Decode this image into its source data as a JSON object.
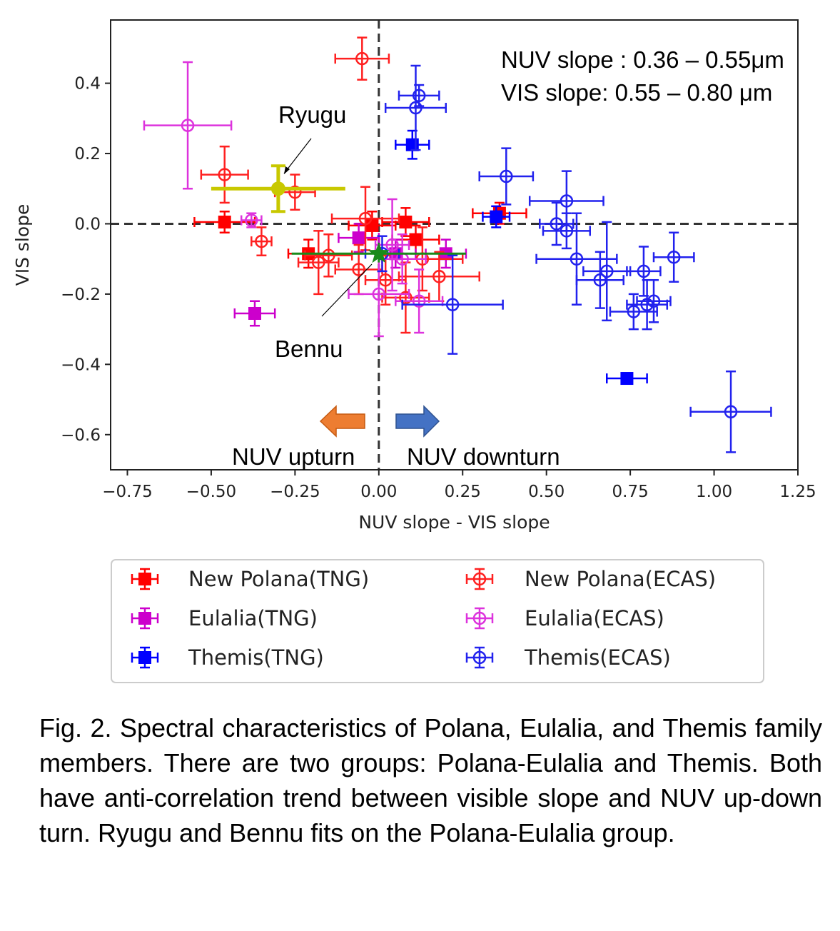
{
  "chart_data": {
    "type": "scatter",
    "xlabel": "NUV slope - VIS slope",
    "ylabel": "VIS slope",
    "xlim": [
      -0.8,
      1.25
    ],
    "ylim": [
      -0.7,
      0.58
    ],
    "xticks": [
      -0.75,
      -0.5,
      -0.25,
      0.0,
      0.25,
      0.5,
      0.75,
      1.0,
      1.25
    ],
    "xtick_labels": [
      "−0.75",
      "−0.50",
      "−0.25",
      "0.00",
      "0.25",
      "0.50",
      "0.75",
      "1.00",
      "1.25"
    ],
    "yticks": [
      -0.6,
      -0.4,
      -0.2,
      0.0,
      0.2,
      0.4
    ],
    "ytick_labels": [
      "−0.6",
      "−0.4",
      "−0.2",
      "0.0",
      "0.2",
      "0.4"
    ],
    "grid": false,
    "legend_position": "bottom",
    "annotations": {
      "slope_line1": "NUV slope : 0.36 – 0.55μm",
      "slope_line2": "VIS slope: 0.55 – 0.80 μm",
      "ryugu": "Ryugu",
      "bennu": "Bennu",
      "upturn": "NUV upturn",
      "downturn": "NUV downturn"
    },
    "series": [
      {
        "name": "New Polana(TNG)",
        "color": "#ff0000",
        "marker": "filled-square",
        "points": [
          {
            "x": -0.46,
            "y": 0.005,
            "xerr": 0.09,
            "yerr": 0.03
          },
          {
            "x": -0.21,
            "y": -0.085,
            "xerr": 0.06,
            "yerr": 0.04
          },
          {
            "x": -0.02,
            "y": -0.005,
            "xerr": 0.07,
            "yerr": 0.04
          },
          {
            "x": 0.08,
            "y": 0.005,
            "xerr": 0.07,
            "yerr": 0.04
          },
          {
            "x": 0.11,
            "y": -0.045,
            "xerr": 0.07,
            "yerr": 0.04
          },
          {
            "x": 0.36,
            "y": 0.03,
            "xerr": 0.08,
            "yerr": 0.03
          }
        ]
      },
      {
        "name": "Eulalia(TNG)",
        "color": "#cc00cc",
        "marker": "filled-square",
        "points": [
          {
            "x": -0.37,
            "y": -0.255,
            "xerr": 0.06,
            "yerr": 0.035
          },
          {
            "x": -0.06,
            "y": -0.04,
            "xerr": 0.06,
            "yerr": 0.04
          },
          {
            "x": 0.05,
            "y": -0.085,
            "xerr": 0.06,
            "yerr": 0.04
          },
          {
            "x": 0.2,
            "y": -0.085,
            "xerr": 0.06,
            "yerr": 0.04
          }
        ]
      },
      {
        "name": "Themis(TNG)",
        "color": "#0000ff",
        "marker": "filled-square",
        "points": [
          {
            "x": 0.1,
            "y": 0.225,
            "xerr": 0.05,
            "yerr": 0.04
          },
          {
            "x": 0.35,
            "y": 0.02,
            "xerr": 0.04,
            "yerr": 0.03
          },
          {
            "x": 0.74,
            "y": -0.44,
            "xerr": 0.06,
            "yerr": 0.015
          }
        ]
      },
      {
        "name": "New Polana(ECAS)",
        "color": "#ff2020",
        "marker": "open-circle",
        "points": [
          {
            "x": -0.05,
            "y": 0.47,
            "xerr": 0.08,
            "yerr": 0.06
          },
          {
            "x": -0.46,
            "y": 0.14,
            "xerr": 0.07,
            "yerr": 0.08
          },
          {
            "x": -0.25,
            "y": 0.09,
            "xerr": 0.06,
            "yerr": 0.05
          },
          {
            "x": -0.35,
            "y": -0.05,
            "xerr": 0.03,
            "yerr": 0.04
          },
          {
            "x": -0.04,
            "y": 0.015,
            "xerr": 0.1,
            "yerr": 0.09
          },
          {
            "x": -0.18,
            "y": -0.11,
            "xerr": 0.06,
            "yerr": 0.09
          },
          {
            "x": -0.15,
            "y": -0.09,
            "xerr": 0.07,
            "yerr": 0.06
          },
          {
            "x": -0.06,
            "y": -0.13,
            "xerr": 0.07,
            "yerr": 0.07
          },
          {
            "x": 0.02,
            "y": -0.16,
            "xerr": 0.06,
            "yerr": 0.07
          },
          {
            "x": 0.08,
            "y": -0.21,
            "xerr": 0.07,
            "yerr": 0.1
          },
          {
            "x": 0.18,
            "y": -0.15,
            "xerr": 0.12,
            "yerr": 0.07
          },
          {
            "x": 0.13,
            "y": -0.1,
            "xerr": 0.12,
            "yerr": 0.09
          }
        ]
      },
      {
        "name": "Eulalia(ECAS)",
        "color": "#dd33dd",
        "marker": "open-circle",
        "points": [
          {
            "x": -0.57,
            "y": 0.28,
            "xerr": 0.13,
            "yerr": 0.18
          },
          {
            "x": -0.38,
            "y": 0.01,
            "xerr": 0.03,
            "yerr": 0.02
          },
          {
            "x": 0.0,
            "y": -0.2,
            "xerr": 0.09,
            "yerr": 0.12
          },
          {
            "x": 0.04,
            "y": -0.06,
            "xerr": 0.05,
            "yerr": 0.13
          },
          {
            "x": 0.07,
            "y": -0.1,
            "xerr": 0.07,
            "yerr": 0.07
          },
          {
            "x": 0.12,
            "y": -0.22,
            "xerr": 0.07,
            "yerr": 0.09
          }
        ]
      },
      {
        "name": "Themis(ECAS)",
        "color": "#2222ee",
        "marker": "open-circle",
        "points": [
          {
            "x": 0.12,
            "y": 0.365,
            "xerr": 0.06,
            "yerr": 0.03
          },
          {
            "x": 0.11,
            "y": 0.33,
            "xerr": 0.09,
            "yerr": 0.12
          },
          {
            "x": 0.38,
            "y": 0.135,
            "xerr": 0.08,
            "yerr": 0.08
          },
          {
            "x": 0.56,
            "y": 0.065,
            "xerr": 0.11,
            "yerr": 0.085
          },
          {
            "x": 0.53,
            "y": 0.0,
            "xerr": 0.05,
            "yerr": 0.06
          },
          {
            "x": 0.56,
            "y": -0.02,
            "xerr": 0.07,
            "yerr": 0.05
          },
          {
            "x": 0.59,
            "y": -0.1,
            "xerr": 0.12,
            "yerr": 0.13
          },
          {
            "x": 0.66,
            "y": -0.16,
            "xerr": 0.07,
            "yerr": 0.08
          },
          {
            "x": 0.68,
            "y": -0.135,
            "xerr": 0.07,
            "yerr": 0.14
          },
          {
            "x": 0.76,
            "y": -0.25,
            "xerr": 0.07,
            "yerr": 0.05
          },
          {
            "x": 0.79,
            "y": -0.135,
            "xerr": 0.05,
            "yerr": 0.07
          },
          {
            "x": 0.8,
            "y": -0.23,
            "xerr": 0.06,
            "yerr": 0.07
          },
          {
            "x": 0.82,
            "y": -0.22,
            "xerr": 0.05,
            "yerr": 0.06
          },
          {
            "x": 0.88,
            "y": -0.095,
            "xerr": 0.06,
            "yerr": 0.07
          },
          {
            "x": 0.22,
            "y": -0.23,
            "xerr": 0.15,
            "yerr": 0.14
          },
          {
            "x": 1.05,
            "y": -0.535,
            "xerr": 0.12,
            "yerr": 0.115
          },
          {
            "x": 0.01,
            "y": -0.085,
            "xerr": 0.05,
            "yerr": 0.05
          }
        ]
      }
    ],
    "extra_points": [
      {
        "label": "Ryugu",
        "x": -0.3,
        "y": 0.1,
        "xerr": 0.2,
        "yerr": 0.065,
        "color": "#c8c800"
      },
      {
        "label": "Bennu",
        "x": 0.0,
        "y": -0.085,
        "xerr": 0.26,
        "yerr": 0.025,
        "color": "#1a8a1a"
      }
    ]
  },
  "caption": "Fig. 2. Spectral characteristics of Polana, Eulalia, and Themis family members. There are two groups: Polana-Eulalia and Themis. Both have anti-correlation trend between visible slope and NUV up-down turn. Ryugu and Bennu fits on the Polana-Eulalia group.",
  "colors": {
    "arrow_left": "#ed7d31",
    "arrow_right": "#4472c4"
  }
}
